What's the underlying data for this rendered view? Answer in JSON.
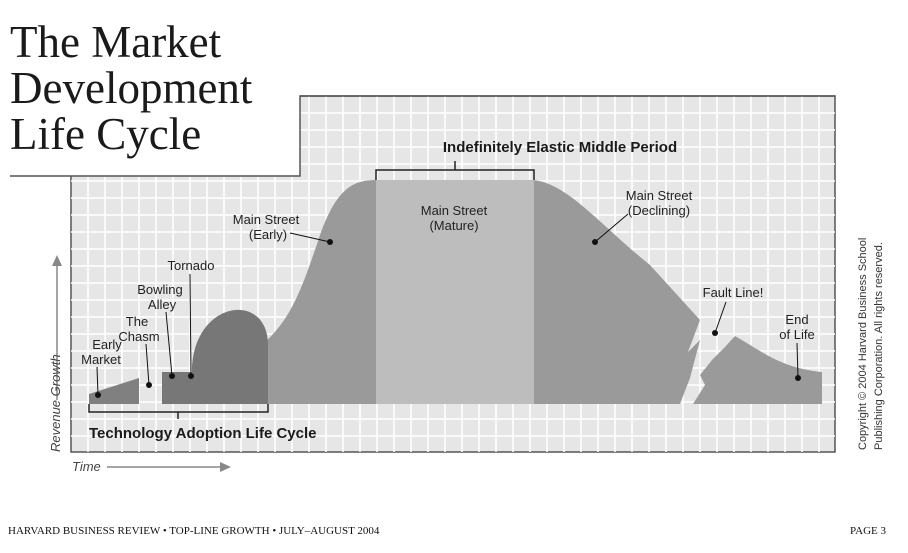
{
  "title": {
    "lines": [
      "The Market",
      "Development",
      "Life Cycle"
    ]
  },
  "period_label": "Indefinitely Elastic Middle Period",
  "stages": {
    "early_market": [
      "Early",
      "Market"
    ],
    "chasm": [
      "The",
      "Chasm"
    ],
    "bowling_alley": [
      "Bowling",
      "Alley"
    ],
    "tornado": [
      "Tornado"
    ],
    "main_street_early": [
      "Main Street",
      "(Early)"
    ],
    "main_street_mature": [
      "Main Street",
      "(Mature)"
    ],
    "main_street_declining": [
      "Main Street",
      "(Declining)"
    ],
    "fault_line": [
      "Fault Line!"
    ],
    "end_of_life": [
      "End",
      "of Life"
    ]
  },
  "tech_adoption_label": "Technology Adoption Life Cycle",
  "axes": {
    "y_label": "Revenue Growth",
    "x_label": "Time"
  },
  "copyright": [
    "Copyright © 2004 Harvard Business School",
    "Publishing Corporation. All rights reserved."
  ],
  "footer": {
    "left": "HARVARD BUSINESS REVIEW • TOP-LINE GROWTH • JULY–AUGUST 2004",
    "right": "PAGE 3"
  },
  "colors": {
    "grid_bg": "#e6e6e6",
    "grid_line": "#ffffff",
    "curve": "#9a9a9a",
    "mature": "#bdbdbd",
    "tornado": "#777777",
    "early": "#808080"
  }
}
